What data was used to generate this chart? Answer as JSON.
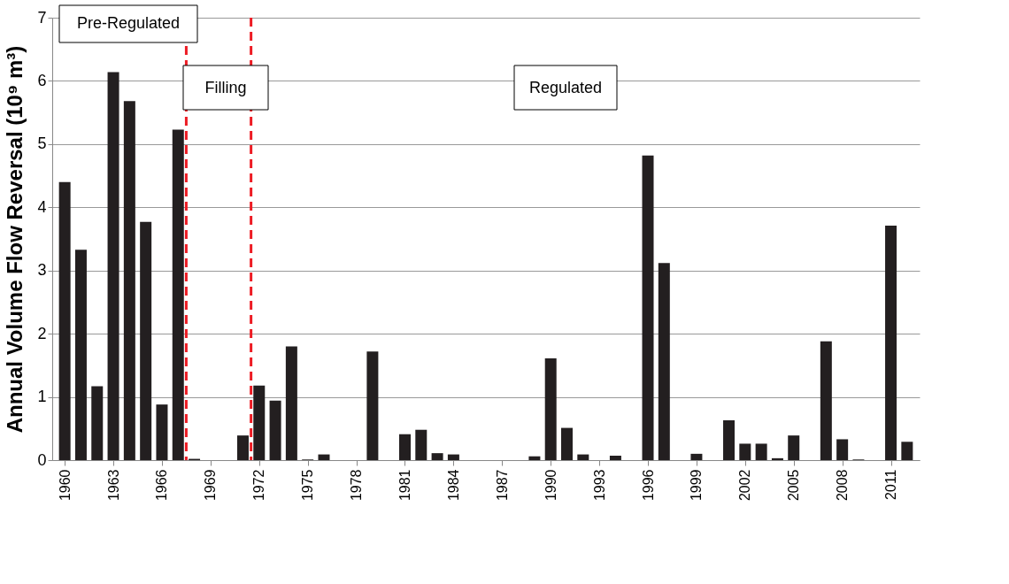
{
  "chart_data": {
    "type": "bar",
    "ylabel": "Annual Volume Flow Reversal (10⁹ m³)",
    "x": [
      1960,
      1961,
      1962,
      1963,
      1964,
      1965,
      1966,
      1967,
      1968,
      1969,
      1970,
      1971,
      1972,
      1973,
      1974,
      1975,
      1976,
      1977,
      1978,
      1979,
      1980,
      1981,
      1982,
      1983,
      1984,
      1985,
      1986,
      1987,
      1988,
      1989,
      1990,
      1991,
      1992,
      1993,
      1994,
      1995,
      1996,
      1997,
      1998,
      1999,
      2000,
      2001,
      2002,
      2003,
      2004,
      2005,
      2006,
      2007,
      2008,
      2009,
      2010,
      2011,
      2012
    ],
    "values": [
      4.4,
      3.33,
      1.17,
      6.14,
      5.68,
      3.77,
      0.88,
      5.23,
      0.02,
      0,
      0,
      0.39,
      1.18,
      0.94,
      1.8,
      0.01,
      0.09,
      0,
      0,
      1.72,
      0,
      0.41,
      0.48,
      0.11,
      0.09,
      0,
      0,
      0,
      0,
      0.06,
      1.61,
      0.51,
      0.09,
      0,
      0.07,
      0,
      4.82,
      3.12,
      0,
      0.1,
      0,
      0.63,
      0.26,
      0.26,
      0.03,
      0.39,
      0,
      1.88,
      0.33,
      0.01,
      0,
      3.71,
      0.29
    ],
    "color": "#231f20",
    "xlim": [
      1959.5,
      2012.5
    ],
    "xticks": [
      1960,
      1963,
      1966,
      1969,
      1972,
      1975,
      1978,
      1981,
      1984,
      1987,
      1990,
      1993,
      1996,
      1999,
      2002,
      2005,
      2008,
      2011
    ],
    "ylim": [
      0,
      7
    ],
    "yticks": [
      0,
      1,
      2,
      3,
      4,
      5,
      6,
      7
    ],
    "grid": "y",
    "ref_lines": [
      {
        "axis": "x",
        "value": 1967.5,
        "color": "#ed1c24",
        "line_style": "dashed"
      },
      {
        "axis": "x",
        "value": 1971.5,
        "color": "#ed1c24",
        "line_style": "dashed"
      }
    ],
    "annotations": [
      "Pre-Regulated",
      "Filling",
      "Regulated"
    ]
  }
}
